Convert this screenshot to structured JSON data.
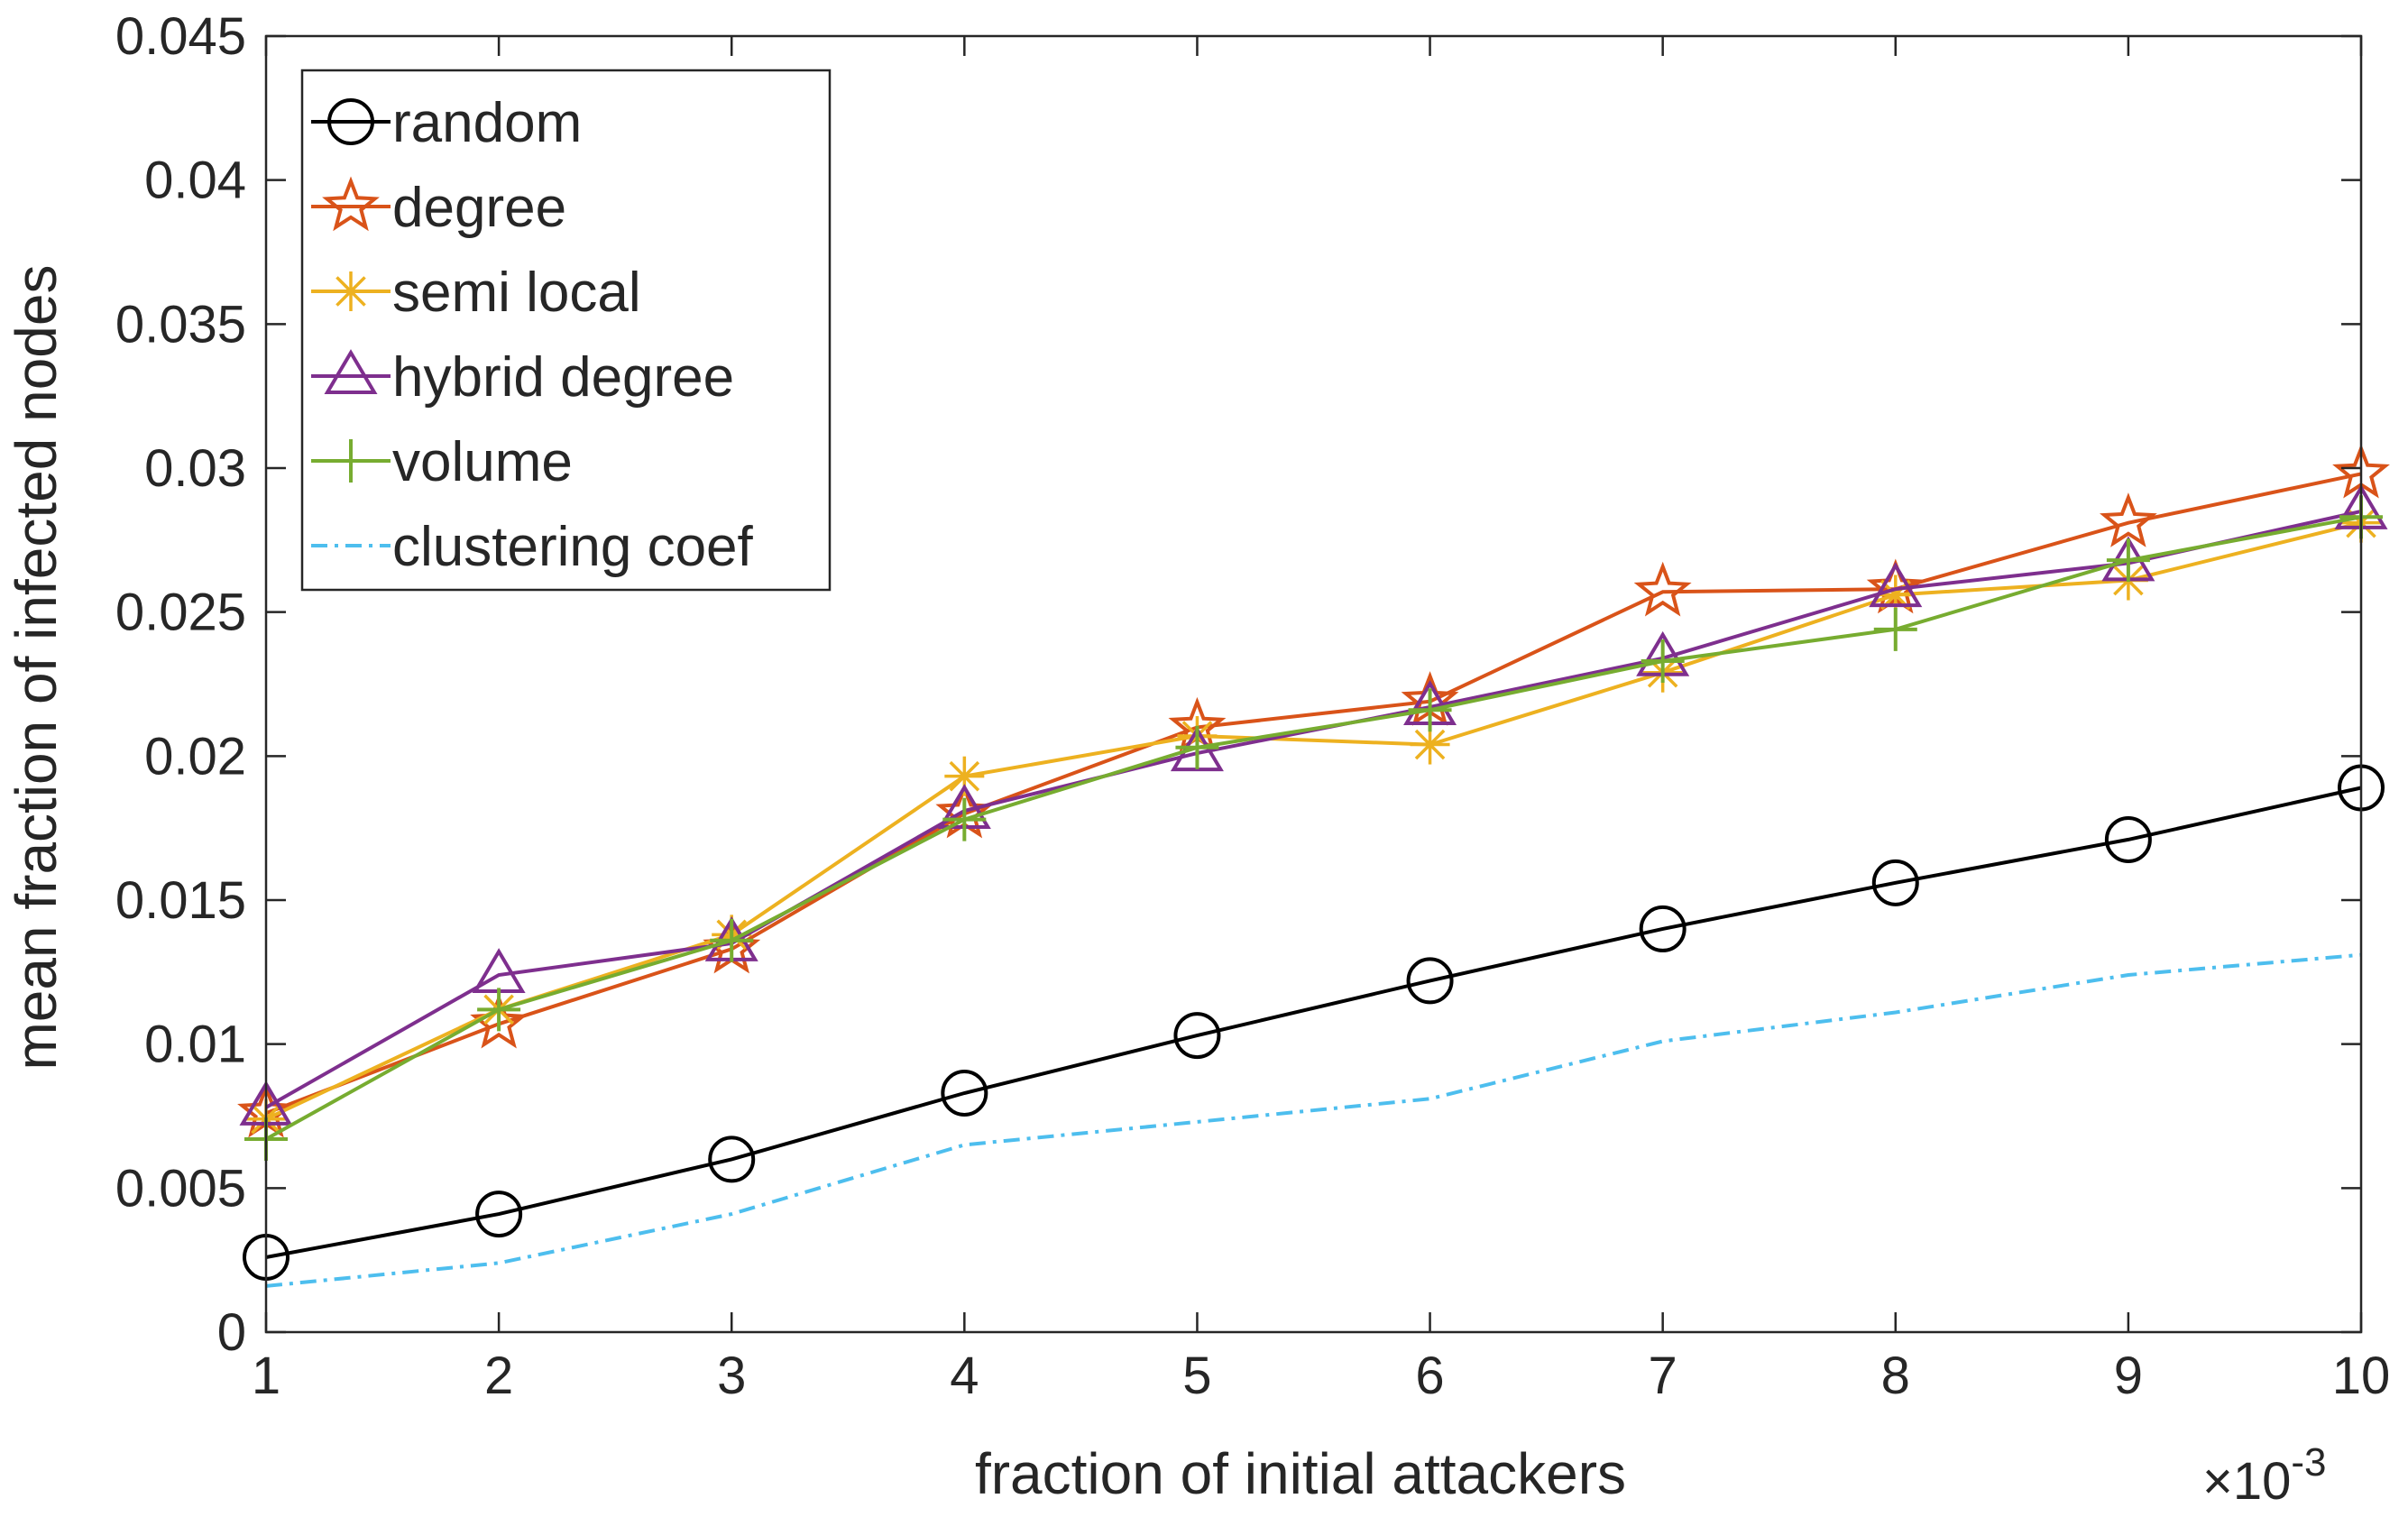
{
  "chart_data": {
    "type": "line",
    "xlabel": "fraction of initial attackers",
    "ylabel": "mean fraction of infected nodes",
    "x_exponent_label": "×10",
    "x_exponent_power": "-3",
    "x": [
      1,
      2,
      3,
      4,
      5,
      6,
      7,
      8,
      9,
      10
    ],
    "x_ticks": [
      "1",
      "2",
      "3",
      "4",
      "5",
      "6",
      "7",
      "8",
      "9",
      "10"
    ],
    "xlim": [
      1,
      10
    ],
    "ylim": [
      0,
      0.045
    ],
    "y_ticks": [
      0,
      0.005,
      0.01,
      0.015,
      0.02,
      0.025,
      0.03,
      0.035,
      0.04,
      0.045
    ],
    "y_tick_labels": [
      "0",
      "0.005",
      "0.01",
      "0.015",
      "0.02",
      "0.025",
      "0.03",
      "0.035",
      "0.04",
      "0.045"
    ],
    "legend_position": "top-left",
    "grid": false,
    "series": [
      {
        "name": "random",
        "marker": "circle",
        "color": "#000000",
        "dash": "solid",
        "values": [
          0.0026,
          0.0041,
          0.006,
          0.0083,
          0.0103,
          0.0122,
          0.014,
          0.0156,
          0.0171,
          0.0189
        ]
      },
      {
        "name": "degree",
        "marker": "star",
        "color": "#D95319",
        "dash": "solid",
        "values": [
          0.0076,
          0.0107,
          0.0133,
          0.018,
          0.021,
          0.0219,
          0.0257,
          0.0258,
          0.0281,
          0.0298
        ]
      },
      {
        "name": "semi local",
        "marker": "asterisk",
        "color": "#EDB120",
        "dash": "solid",
        "values": [
          0.0074,
          0.0112,
          0.0138,
          0.0193,
          0.0207,
          0.0204,
          0.0229,
          0.0256,
          0.0261,
          0.0281
        ]
      },
      {
        "name": "hybrid degree",
        "marker": "triangle",
        "color": "#7E2F8E",
        "dash": "solid",
        "values": [
          0.0078,
          0.0124,
          0.0135,
          0.0181,
          0.0201,
          0.0217,
          0.0234,
          0.0258,
          0.0267,
          0.0285
        ]
      },
      {
        "name": "volume",
        "marker": "plus",
        "color": "#77AC30",
        "dash": "solid",
        "values": [
          0.0067,
          0.0112,
          0.0136,
          0.0178,
          0.0203,
          0.0216,
          0.0233,
          0.0244,
          0.0268,
          0.0283
        ]
      },
      {
        "name": "clustering coef",
        "marker": "none",
        "color": "#4DBEEE",
        "dash": "dashdot",
        "values": [
          0.0016,
          0.0024,
          0.0041,
          0.0065,
          0.0073,
          0.0081,
          0.0101,
          0.0111,
          0.0124,
          0.0131
        ]
      }
    ]
  }
}
